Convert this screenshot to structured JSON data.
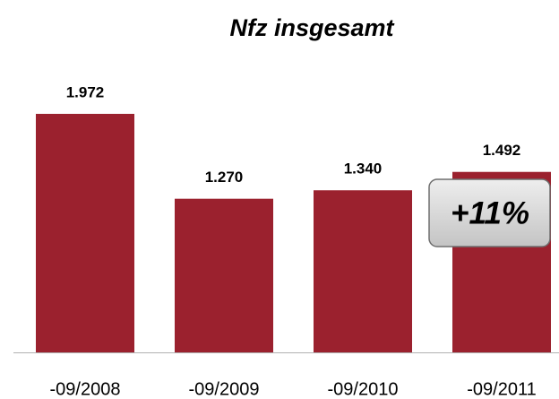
{
  "chart_data": {
    "type": "bar",
    "title": "Nfz insgesamt",
    "categories": [
      "-09/2008",
      "-09/2009",
      "-09/2010",
      "-09/2011"
    ],
    "values": [
      1972,
      1270,
      1340,
      1492
    ],
    "value_labels": [
      "1.972",
      "1.270",
      "1.340",
      "1.492"
    ],
    "color": "#9b212e",
    "annotation": "+11%"
  }
}
